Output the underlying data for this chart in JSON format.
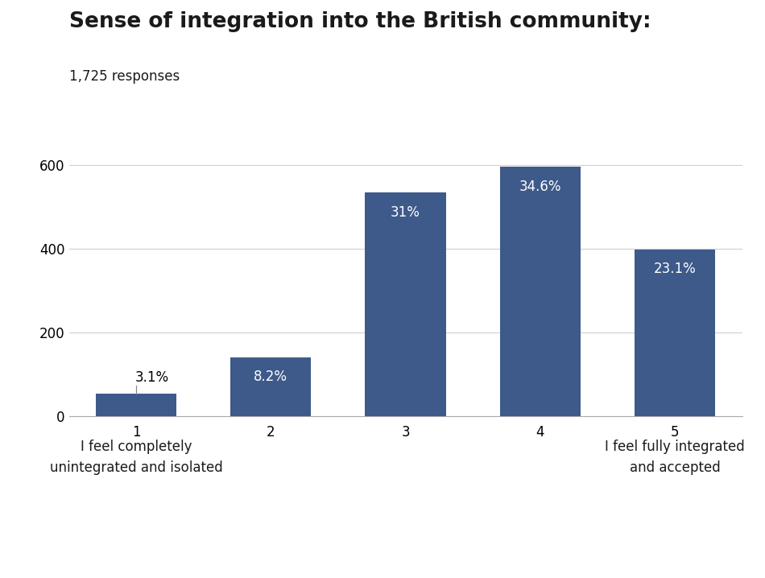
{
  "title": "Sense of integration into the British community:",
  "subtitle": "1,725 responses",
  "categories": [
    1,
    2,
    3,
    4,
    5
  ],
  "values": [
    53,
    141,
    535,
    597,
    399
  ],
  "percentages": [
    "3.1%",
    "8.2%",
    "31%",
    "34.6%",
    "23.1%"
  ],
  "bar_color": "#3d5a8a",
  "label_left": "I feel completely\nunintegrated and isolated",
  "label_right": "I feel fully integrated\nand accepted",
  "ylim": [
    0,
    650
  ],
  "yticks": [
    0,
    200,
    400,
    600
  ],
  "background_color": "#ffffff",
  "title_fontsize": 19,
  "subtitle_fontsize": 12,
  "tick_fontsize": 12,
  "bar_label_fontsize": 12,
  "annotation_fontsize": 12
}
